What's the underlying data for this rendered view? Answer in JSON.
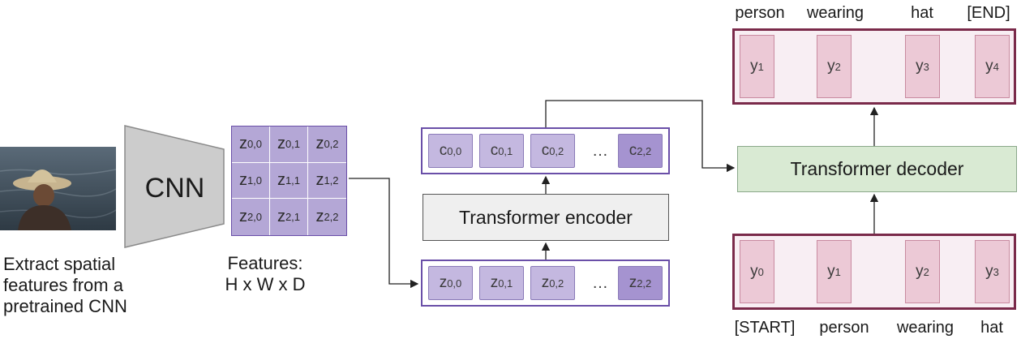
{
  "cnn_label": "CNN",
  "caption_left": [
    "Extract spatial",
    "features from a",
    "pretrained CNN"
  ],
  "features_caption": [
    "Features:",
    "H x W x D"
  ],
  "grid": [
    [
      [
        "z",
        "0,0"
      ],
      [
        "z",
        "0,1"
      ],
      [
        "z",
        "0,2"
      ]
    ],
    [
      [
        "z",
        "1,0"
      ],
      [
        "z",
        "1,1"
      ],
      [
        "z",
        "1,2"
      ]
    ],
    [
      [
        "z",
        "2,0"
      ],
      [
        "z",
        "2,1"
      ],
      [
        "z",
        "2,2"
      ]
    ]
  ],
  "encoder_label": "Transformer encoder",
  "decoder_label": "Transformer decoder",
  "c_row": [
    [
      "c",
      "0,0"
    ],
    [
      "c",
      "0,1"
    ],
    [
      "c",
      "0,2"
    ],
    [
      "…",
      ""
    ],
    [
      "c",
      "2,2"
    ]
  ],
  "z_row": [
    [
      "z",
      "0,0"
    ],
    [
      "z",
      "0,1"
    ],
    [
      "z",
      "0,2"
    ],
    [
      "…",
      ""
    ],
    [
      "z",
      "2,2"
    ]
  ],
  "y_out": [
    [
      "y",
      "1"
    ],
    [
      "y",
      "2"
    ],
    [
      "y",
      "3"
    ],
    [
      "y",
      "4"
    ]
  ],
  "y_in": [
    [
      "y",
      "0"
    ],
    [
      "y",
      "1"
    ],
    [
      "y",
      "2"
    ],
    [
      "y",
      "3"
    ]
  ],
  "words_top": [
    "person",
    "wearing",
    "hat",
    "[END]"
  ],
  "words_bottom": [
    "[START]",
    "person",
    "wearing",
    "hat"
  ],
  "colors": {
    "grid_fill": "#b4a7d6",
    "token_fill": "#c4b8e0",
    "token_dark": "#a593d0",
    "encoder_fill": "#efefef",
    "decoder_fill": "#d9ead3",
    "row_border": "#6a4fa8",
    "y_fill": "#ecc9d6",
    "y_border": "#7a2a4a"
  }
}
